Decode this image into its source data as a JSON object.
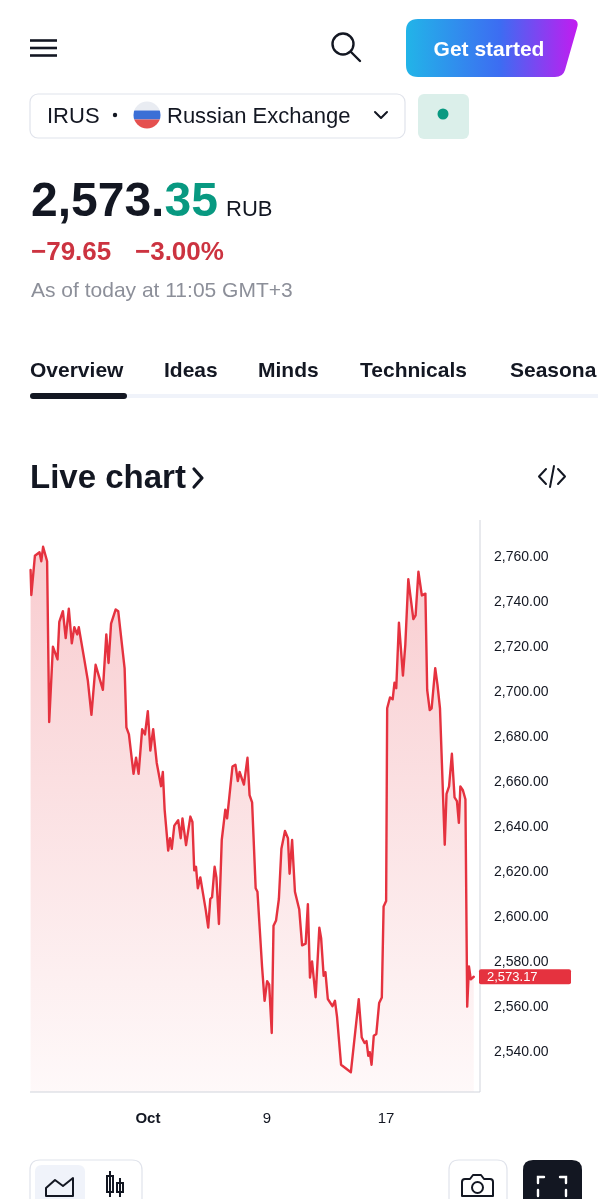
{
  "chart_data": {
    "type": "area",
    "title": "Live chart",
    "annotations": [
      "Get started",
      "IRUS",
      "Russian Exchange",
      "2,573.35",
      "RUB",
      "−79.65",
      "−3.00%",
      "As of today at 11:05 GMT+3",
      "Overview",
      "Ideas",
      "Minds",
      "Technicals",
      "Seasona"
    ],
    "color": "#e5323f",
    "x": [
      -6.89,
      -6.84,
      -6.6,
      -6.29,
      -6.17,
      -6.05,
      -5.78,
      -5.64,
      -5.39,
      -5.08,
      -4.96,
      -4.72,
      -4.53,
      -4.32,
      -4.12,
      -3.95,
      -3.76,
      -3.65,
      -3.28,
      -3.04,
      -2.8,
      -2.52,
      -2.03,
      -1.8,
      -1.65,
      -1.48,
      -1.17,
      -1.0,
      -0.57,
      -0.45,
      -0.28,
      0.03,
      0.2,
      0.37,
      0.61,
      0.8,
      0.99,
      1.16,
      1.35,
      1.59,
      1.88,
      2.0,
      2.12,
      2.36,
      2.48,
      2.6,
      2.77,
      3.03,
      3.2,
      3.32,
      3.56,
      3.85,
      3.99,
      4.11,
      4.23,
      4.35,
      4.52,
      4.88,
      5.05,
      5.19,
      5.31,
      5.48,
      5.6,
      5.77,
      5.96,
      6.2,
      6.32,
      6.68,
      6.88,
      7.04,
      7.16,
      7.45,
      7.69,
      7.83,
      8.0,
      8.24,
      8.36,
      8.67,
      8.84,
      9.01,
      9.15,
      9.32,
      9.44,
      9.61,
      9.8,
      9.97,
      10.21,
      10.41,
      10.52,
      10.69,
      10.88,
      11.17,
      11.36,
      11.6,
      11.75,
      11.89,
      12.03,
      12.27,
      12.52,
      12.64,
      12.81,
      12.93,
      13.09,
      13.4,
      13.57,
      13.71,
      13.98,
      14.64,
      15.17,
      15.37,
      15.56,
      15.69,
      15.81,
      15.91,
      16.03,
      16.18,
      16.35,
      16.54,
      16.72,
      16.84,
      17.01,
      17.08,
      17.27,
      17.45,
      17.57,
      17.69,
      17.87,
      18.14,
      18.3,
      18.5,
      18.84,
      18.99,
      19.18,
      19.41,
      19.65,
      19.77,
      19.94,
      20.07,
      20.31,
      20.46,
      20.63,
      20.95,
      21.07,
      21.24,
      21.43,
      21.61,
      21.77,
      21.9,
      22.0,
      22.17,
      22.34,
      22.46,
      22.58,
      22.7,
      22.9
    ],
    "values": [
      2753.8,
      2742.7,
      2760.1,
      2761.7,
      2757.7,
      2764.1,
      2757.7,
      2686.3,
      2719.7,
      2714.1,
      2730.8,
      2735.5,
      2723.6,
      2736.6,
      2721.2,
      2728.4,
      2725.2,
      2728.4,
      2714.1,
      2704.6,
      2689.5,
      2711.7,
      2700.6,
      2725.2,
      2712.5,
      2730.0,
      2736.3,
      2735.5,
      2710.1,
      2683.9,
      2680.8,
      2663.3,
      2670.4,
      2663.3,
      2683.1,
      2680.8,
      2691.1,
      2673.6,
      2683.1,
      2668.1,
      2657.8,
      2664.1,
      2647.4,
      2629.2,
      2634.7,
      2630.0,
      2640.3,
      2642.7,
      2634.7,
      2643.5,
      2631.6,
      2644.3,
      2641.9,
      2620.4,
      2622.0,
      2612.5,
      2617.3,
      2603.0,
      2595.0,
      2607.7,
      2608.5,
      2622.0,
      2617.3,
      2596.6,
      2633.9,
      2647.4,
      2643.5,
      2666.5,
      2667.3,
      2660.1,
      2664.1,
      2658.5,
      2670.4,
      2653.8,
      2650.6,
      2612.5,
      2610.9,
      2577.6,
      2562.5,
      2571.2,
      2569.7,
      2548.2,
      2595.8,
      2598.2,
      2607.7,
      2630.0,
      2637.9,
      2634.7,
      2618.9,
      2633.9,
      2610.9,
      2603.0,
      2587.1,
      2587.9,
      2605.4,
      2572.8,
      2580.0,
      2564.1,
      2595.0,
      2590.3,
      2573.6,
      2575.2,
      2563.3,
      2560.1,
      2562.5,
      2555.4,
      2534.1,
      2530.8,
      2563.2,
      2546.2,
      2543.8,
      2544.6,
      2538.1,
      2539.7,
      2534.1,
      2547.0,
      2547.8,
      2561.5,
      2564.0,
      2604.4,
      2606.8,
      2692.4,
      2697.2,
      2696.4,
      2703.7,
      2701.3,
      2730.4,
      2706.9,
      2720.7,
      2749.7,
      2732.0,
      2733.6,
      2753.0,
      2742.5,
      2743.3,
      2700.5,
      2691.6,
      2692.4,
      2710.2,
      2702.9,
      2692.4,
      2631.8,
      2654.4,
      2657.7,
      2672.2,
      2652.8,
      2651.2,
      2641.5,
      2657.7,
      2656.0,
      2652.0,
      2559.9,
      2577.7,
      2572.0,
      2573.17
    ],
    "value_labels": [
      null,
      null,
      null,
      null,
      null,
      null,
      null,
      null,
      null,
      null,
      null,
      null,
      null,
      null,
      null,
      null,
      null,
      null,
      null,
      null,
      null,
      null,
      null,
      null,
      null,
      null,
      null,
      null,
      null,
      null,
      null,
      null,
      null,
      null,
      null,
      null,
      null,
      null,
      null,
      null,
      null,
      null,
      null,
      null,
      null,
      null,
      null,
      null,
      null,
      null,
      null,
      null,
      null,
      null,
      null,
      null,
      null,
      null,
      null,
      null,
      null,
      null,
      null,
      null,
      null,
      null,
      null,
      null,
      null,
      null,
      null,
      null,
      null,
      null,
      null,
      null,
      null,
      null,
      null,
      null,
      null,
      null,
      null,
      null,
      null,
      null,
      null,
      null,
      null,
      null,
      null,
      null,
      null,
      null,
      null,
      null,
      null,
      null,
      null,
      null,
      null,
      null,
      null,
      null,
      null,
      null,
      null,
      null,
      null,
      null,
      null,
      null,
      null,
      null,
      null,
      null,
      null,
      null,
      null,
      null,
      null,
      null,
      null,
      null,
      null,
      null,
      null,
      null,
      null,
      null,
      null,
      null,
      null,
      null,
      null,
      null,
      null,
      null,
      null,
      null,
      null,
      null,
      null,
      null,
      null,
      null,
      null,
      null,
      null,
      null,
      null,
      null,
      null,
      null,
      "2,573.17"
    ],
    "xlim": [
      -6.93,
      23.32
    ],
    "xticks": [
      {
        "value": 1,
        "label": "Oct"
      },
      9,
      17
    ],
    "ylim": [
      2522,
      2776
    ],
    "yticks": [
      {
        "value": 2540,
        "label": "2,540.00"
      },
      {
        "value": 2560,
        "label": "2,560.00"
      },
      {
        "value": 2580,
        "label": "2,580.00"
      },
      {
        "value": 2600,
        "label": "2,600.00"
      },
      {
        "value": 2620,
        "label": "2,620.00"
      },
      {
        "value": 2640,
        "label": "2,640.00"
      },
      {
        "value": 2660,
        "label": "2,660.00"
      },
      {
        "value": 2680,
        "label": "2,680.00"
      },
      {
        "value": 2700,
        "label": "2,700.00"
      },
      {
        "value": 2720,
        "label": "2,720.00"
      },
      {
        "value": 2740,
        "label": "2,740.00"
      },
      {
        "value": 2760,
        "label": "2,760.00"
      }
    ]
  }
}
